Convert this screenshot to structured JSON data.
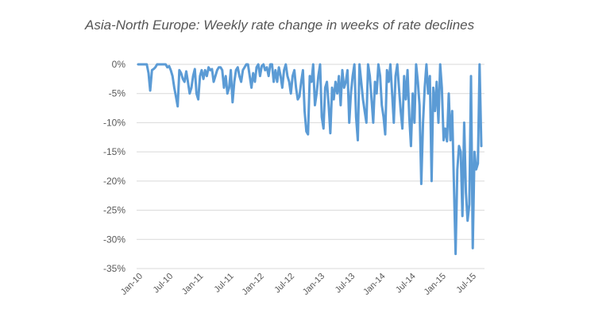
{
  "chart_data": {
    "type": "line",
    "title": "Asia-North Europe: Weekly rate change in weeks of rate declines",
    "xlabel": "",
    "ylabel": "",
    "ylim": [
      -35,
      0
    ],
    "y_ticks": [
      "0%",
      "-5%",
      "-10%",
      "-15%",
      "-20%",
      "-25%",
      "-30%",
      "-35%"
    ],
    "x_ticks": [
      "Jan-10",
      "Jul-10",
      "Jan-11",
      "Jul-11",
      "Jan-12",
      "Jul-12",
      "Jan-13",
      "Jul-13",
      "Jan-14",
      "Jul-14",
      "Jan-15",
      "Jul-15"
    ],
    "grid": true,
    "line_color": "#5b9bd5",
    "series": [
      {
        "values": [
          0,
          0,
          0,
          0,
          0,
          0,
          -1.5,
          -4.5,
          -1,
          -0.8,
          -0.5,
          0,
          0,
          0,
          0,
          0,
          0,
          -0.5,
          -0.3,
          -1,
          -2,
          -4,
          -5.5,
          -7.2,
          -1,
          -1.5,
          -2.5,
          -3,
          -1.2,
          -3,
          -5,
          -4,
          -2,
          -0.8,
          -5,
          -6,
          -2,
          -1,
          -2.5,
          -1,
          -2,
          -0.5,
          -1,
          -0.8,
          -3,
          -2,
          -1,
          -0.5,
          -0.5,
          -1,
          -4,
          -2,
          -5,
          -4,
          -1,
          -6.5,
          -3,
          -1,
          -0.5,
          -2,
          -3,
          -1,
          -0.5,
          0,
          0,
          -2,
          -4,
          -1.5,
          -3,
          -0.5,
          0,
          -2,
          -0.3,
          0,
          -1,
          -0.5,
          -2,
          0,
          0,
          -3,
          -1,
          -3,
          -0.5,
          -2,
          -4,
          -1,
          0,
          -2,
          -3,
          -5,
          -2,
          -1,
          -4,
          -6,
          -5.5,
          -3,
          -1,
          -8,
          -11.5,
          -12,
          -2,
          -3,
          0,
          -7,
          -5,
          -2,
          0,
          -9,
          -11,
          -4,
          -3,
          -7,
          -11.8,
          -4,
          -6,
          -3,
          -5,
          -2,
          -7,
          -1,
          -4,
          -3,
          -1,
          -10,
          -5,
          -2,
          0,
          -9,
          -13,
          0,
          -3,
          -6,
          -8,
          -10,
          0,
          -2,
          -6,
          -10,
          -3,
          -5,
          0,
          -2,
          -7,
          -9,
          -12,
          -1,
          -3,
          0,
          -5,
          -10,
          -2,
          0,
          -4,
          -8,
          -11,
          -2,
          -6,
          -1,
          -9,
          -14,
          -5,
          -10,
          0,
          -3,
          -7,
          -20.5,
          -10,
          -4,
          0,
          -5,
          -2,
          -20,
          -4,
          -8,
          -3,
          -10,
          0,
          -4,
          -13,
          -11,
          -13.2,
          -5,
          -13,
          -8,
          -20,
          -32.5,
          -18,
          -14,
          -15,
          -26,
          -10,
          -22,
          -26.8,
          -24,
          -2,
          -31.5,
          -15,
          -18,
          -17,
          0,
          -14
        ]
      }
    ]
  }
}
